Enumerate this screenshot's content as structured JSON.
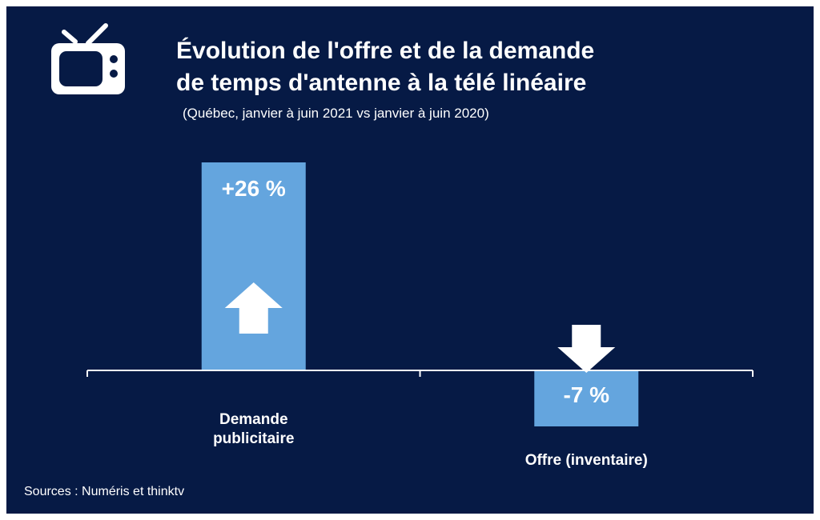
{
  "header": {
    "title_line1": "Évolution de l'offre et de la demande",
    "title_line2": "de temps d'antenne à la télé linéaire",
    "subtitle": "(Québec, janvier à juin 2021 vs janvier à juin 2020)"
  },
  "footer": {
    "sources": "Sources : Numéris et thinktv"
  },
  "icon": "tv-icon",
  "colors": {
    "background": "#061a45",
    "bar": "#64a5de",
    "text": "#ffffff"
  },
  "chart_data": {
    "type": "bar",
    "categories": [
      {
        "lines": [
          "Demande",
          "publicitaire"
        ]
      },
      {
        "lines": [
          "Offre (inventaire)"
        ]
      }
    ],
    "values": [
      26,
      -7
    ],
    "data_labels": [
      "+26 %",
      "-7 %"
    ],
    "arrows": [
      "up",
      "down"
    ],
    "ylim": [
      -10,
      30
    ],
    "grid": false,
    "legend": "none"
  }
}
